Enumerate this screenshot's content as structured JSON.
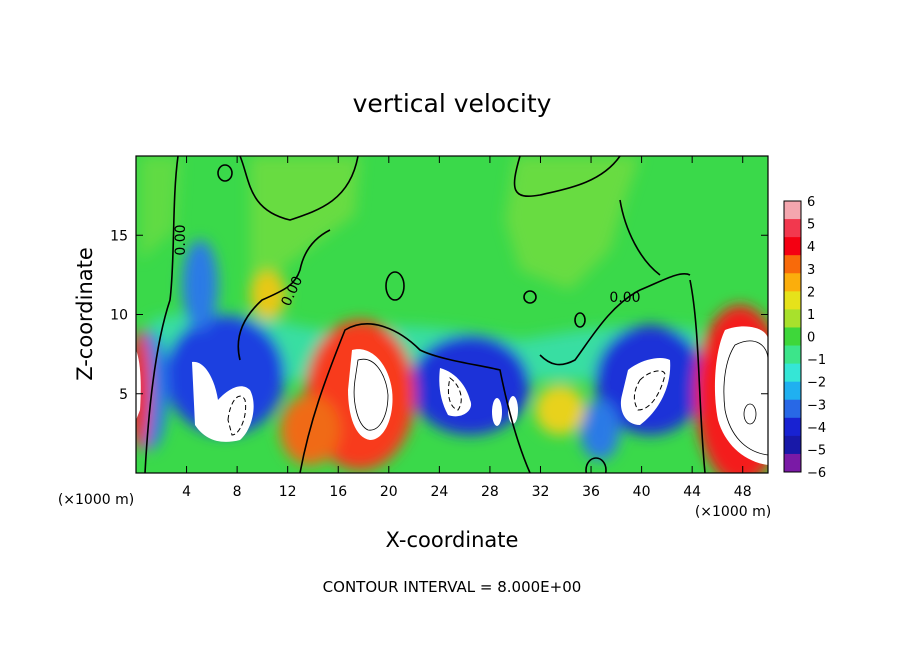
{
  "chart_data": {
    "type": "heatmap",
    "title": "vertical velocity",
    "xlabel": "X-coordinate",
    "ylabel": "Z-coordinate",
    "x_unit": "(×1000 m)",
    "x_unit_right": "(×1000 m)",
    "xlim": [
      0,
      50
    ],
    "ylim": [
      0,
      20
    ],
    "x_ticks": [
      "4",
      "8",
      "12",
      "16",
      "20",
      "24",
      "28",
      "32",
      "36",
      "40",
      "44",
      "48"
    ],
    "y_ticks": [
      "5",
      "10",
      "15"
    ],
    "colorbar": {
      "range": [
        -6,
        6
      ],
      "ticks": [
        "6",
        "5",
        "4",
        "3",
        "2",
        "1",
        "0",
        "−1",
        "−2",
        "−3",
        "−4",
        "−5",
        "−6"
      ],
      "colors": [
        "#f4a6ae",
        "#f2384e",
        "#f40012",
        "#f86a0a",
        "#fbae0c",
        "#e6e21a",
        "#a8e12c",
        "#3ed73a",
        "#3ce58a",
        "#35e6d6",
        "#20b0f0",
        "#2868e6",
        "#1822d2",
        "#1818a8",
        "#7a1aa6"
      ]
    },
    "contour_labels": [
      "0.00",
      "0.00",
      "0.00"
    ],
    "annotation": "CONTOUR INTERVAL = 8.000E+00"
  }
}
